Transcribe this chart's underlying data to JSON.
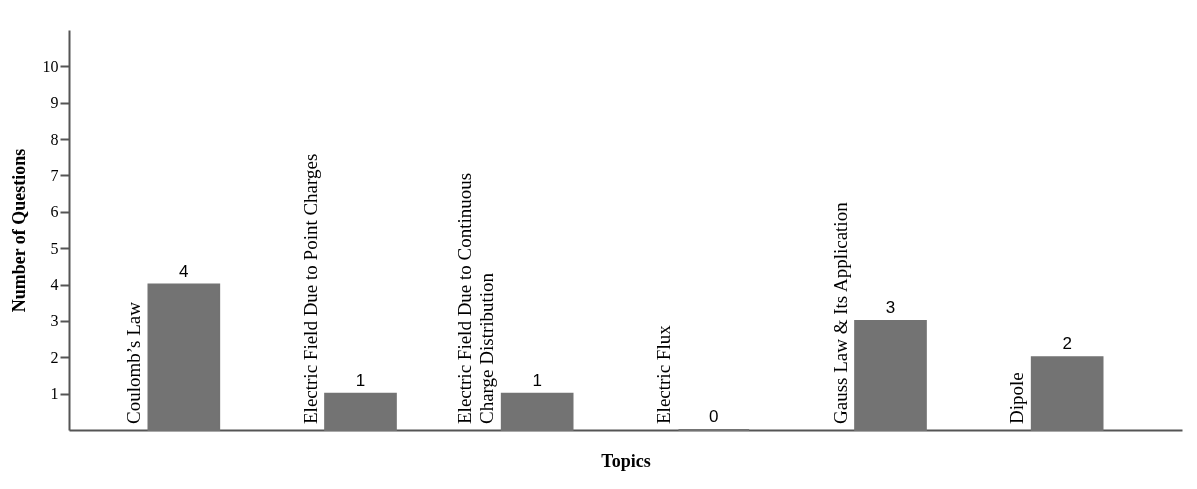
{
  "chart_data": {
    "type": "bar",
    "xlabel": "Topics",
    "ylabel": "Number of Questions",
    "categories": [
      "Coulomb’s Law",
      "Electric Field Due to Point Charges",
      "Electric Field Due to Continuous Charge Distribution",
      "Electric Flux",
      "Gauss Law & Its Application",
      "Dipole"
    ],
    "values": [
      4,
      1,
      1,
      0,
      3,
      2
    ],
    "color": "#737373",
    "ylim": [
      0,
      11
    ],
    "yticks": [
      1,
      2,
      3,
      4,
      5,
      6,
      7,
      8,
      9,
      10
    ],
    "grid": false,
    "data_labels": true
  }
}
